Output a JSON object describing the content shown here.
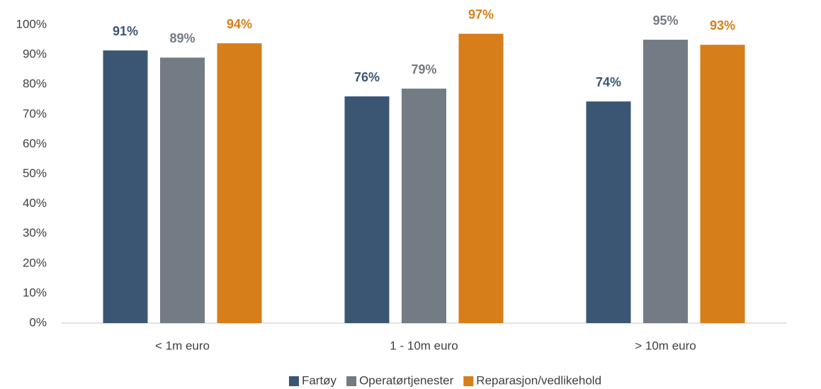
{
  "chart_data": {
    "type": "bar",
    "categories": [
      "< 1m euro",
      "1  - 10m euro",
      "> 10m euro"
    ],
    "series": [
      {
        "name": "Fartøy",
        "color": "#3a5673",
        "values": [
          91.4,
          76,
          74.3
        ],
        "value_labels": [
          "91%",
          "76%",
          "74%"
        ]
      },
      {
        "name": "Operatørtjenester",
        "color": "#737b84",
        "values": [
          89,
          78.6,
          95
        ],
        "value_labels": [
          "89%",
          "79%",
          "95%"
        ]
      },
      {
        "name": "Reparasjon/vedlikehold",
        "color": "#d67e19",
        "values": [
          93.8,
          97,
          93.3
        ],
        "value_labels": [
          "94%",
          "97%",
          "93%"
        ]
      }
    ],
    "ylim": [
      0,
      100
    ],
    "yticks": [
      {
        "value": 0,
        "label": "0%"
      },
      {
        "value": 10,
        "label": "10%"
      },
      {
        "value": 20,
        "label": "20%"
      },
      {
        "value": 30,
        "label": "30%"
      },
      {
        "value": 40,
        "label": "40%"
      },
      {
        "value": 50,
        "label": "50%"
      },
      {
        "value": 60,
        "label": "60%"
      },
      {
        "value": 70,
        "label": "70%"
      },
      {
        "value": 80,
        "label": "80%"
      },
      {
        "value": 90,
        "label": "90%"
      },
      {
        "value": 100,
        "label": "100%"
      }
    ],
    "grid": false,
    "legend": "bottom"
  }
}
